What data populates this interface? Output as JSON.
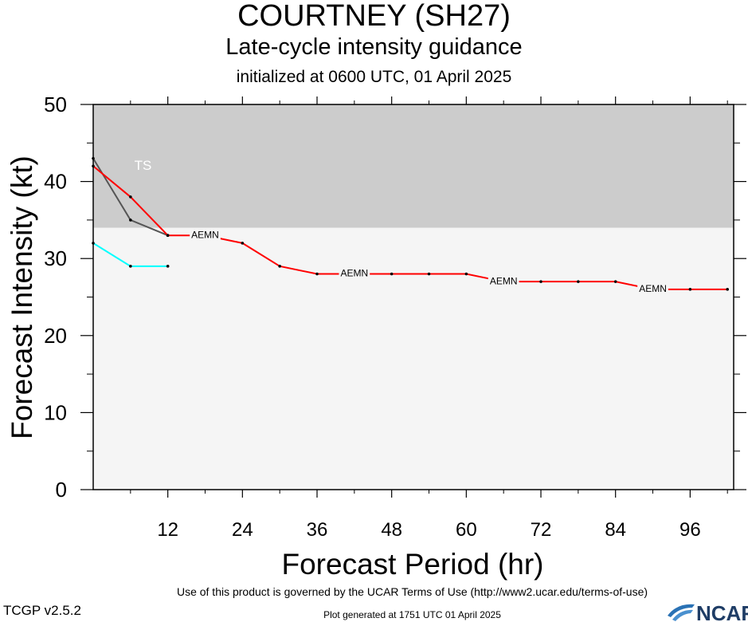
{
  "header": {
    "title": "COURTNEY (SH27)",
    "subtitle": "Late-cycle intensity guidance",
    "init_line": "initialized at 0600 UTC, 01 April 2025"
  },
  "footer": {
    "terms": "Use of this product is governed by the UCAR Terms of Use (http://www2.ucar.edu/terms-of-use)",
    "version": "TCGP v2.5.2",
    "generated": "Plot generated at 1751 UTC   01 April 2025",
    "logo_text": "NCAR"
  },
  "chart_data": {
    "type": "line",
    "xlabel": "Forecast Period (hr)",
    "ylabel": "Forecast Intensity (kt)",
    "xlim": [
      0,
      103
    ],
    "ylim": [
      0,
      50
    ],
    "x_ticks": [
      12,
      24,
      36,
      48,
      60,
      72,
      84,
      96
    ],
    "y_ticks": [
      0,
      10,
      20,
      30,
      40,
      50
    ],
    "bands": [
      {
        "label": "TS",
        "from": 34,
        "to": 50,
        "color": "#cccccc",
        "label_x": 8,
        "label_y": 42
      }
    ],
    "background_color": "#f5f5f5",
    "series": [
      {
        "name": "AEMN",
        "color": "#ff0000",
        "x": [
          0,
          6,
          12,
          18,
          24,
          30,
          36,
          42,
          48,
          54,
          60,
          66,
          72,
          78,
          84,
          90,
          96,
          102
        ],
        "values": [
          42,
          38,
          33,
          33,
          32,
          29,
          28,
          28,
          28,
          28,
          28,
          27,
          27,
          27,
          27,
          26,
          26,
          26
        ],
        "label_x": [
          18,
          42,
          66,
          90
        ]
      },
      {
        "color": "#555555",
        "x": [
          0,
          6,
          12
        ],
        "values": [
          43,
          35,
          33
        ]
      },
      {
        "color": "#00ffff",
        "x": [
          0,
          6,
          12
        ],
        "values": [
          32,
          29,
          29
        ]
      }
    ]
  }
}
